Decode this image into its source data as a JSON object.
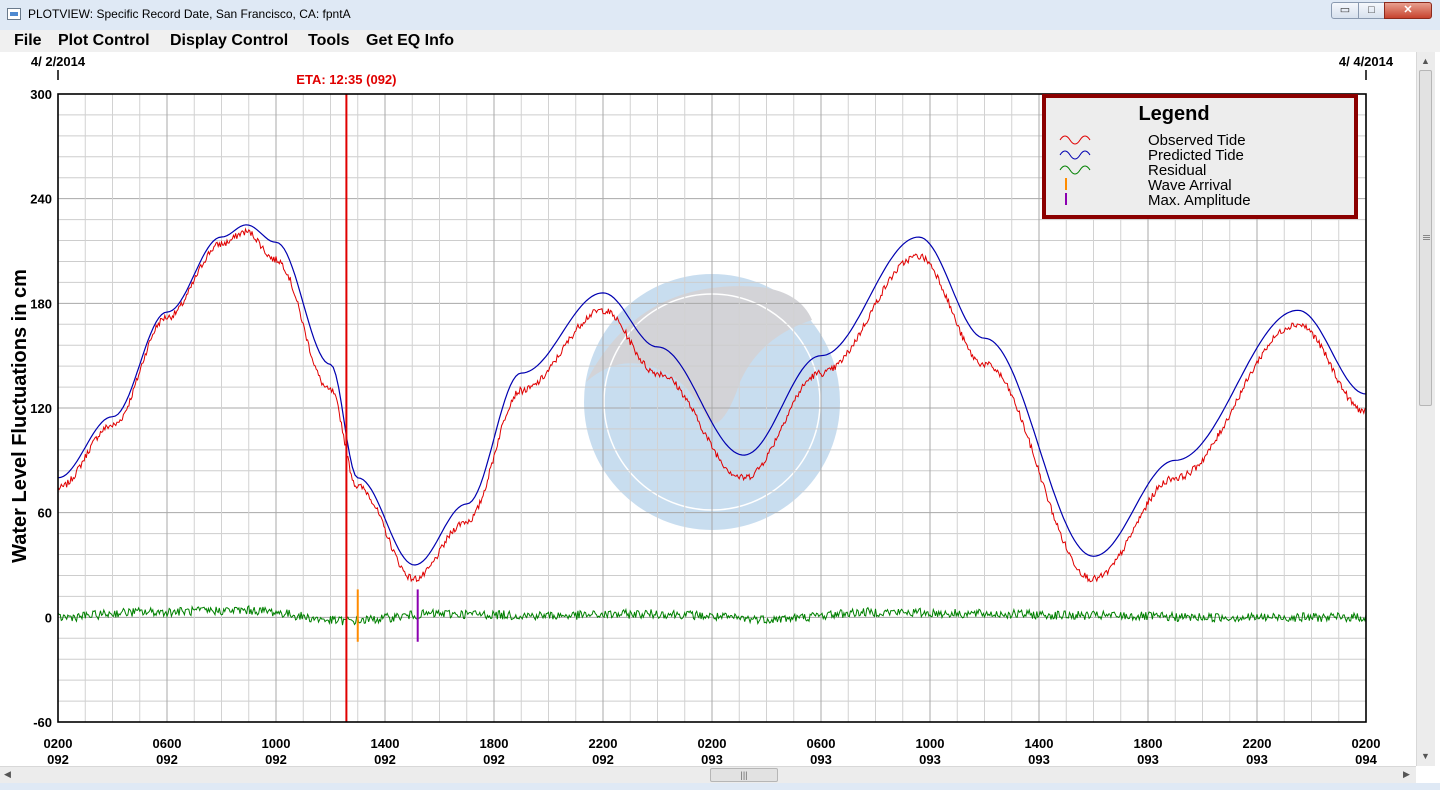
{
  "window": {
    "title": "PLOTVIEW: Specific Record Date, San Francisco, CA: fpntA",
    "min_glyph": "▭",
    "max_glyph": "□",
    "close_glyph": "✕"
  },
  "menu": [
    "File",
    "Plot Control",
    "Display Control",
    "Tools",
    "Get EQ Info"
  ],
  "chart_data": {
    "type": "line",
    "ylabel": "Water Level Fluctuations in cm",
    "ylim": [
      -60,
      300
    ],
    "yticks": [
      300,
      240,
      180,
      120,
      60,
      0,
      -60
    ],
    "xlim_hours": [
      0,
      48
    ],
    "x_start_date": "4/ 2/2014",
    "x_end_date": "4/ 4/2014",
    "x_tick_labels": [
      [
        "0200",
        "092"
      ],
      [
        "0600",
        "092"
      ],
      [
        "1000",
        "092"
      ],
      [
        "1400",
        "092"
      ],
      [
        "1800",
        "092"
      ],
      [
        "2200",
        "092"
      ],
      [
        "0200",
        "093"
      ],
      [
        "0600",
        "093"
      ],
      [
        "1000",
        "093"
      ],
      [
        "1400",
        "093"
      ],
      [
        "1800",
        "093"
      ],
      [
        "2200",
        "093"
      ],
      [
        "0200",
        "094"
      ]
    ],
    "eta": {
      "label": "ETA: 12:35 (092)",
      "time": "12:35",
      "day": "092",
      "color": "#e00000"
    },
    "wave_arrival": {
      "time": "13:00",
      "day": "092",
      "color": "#ff8c00"
    },
    "max_amplitude": {
      "time": "15:12",
      "day": "092",
      "color": "#8b00b0"
    },
    "legend": {
      "title": "Legend",
      "entries": [
        {
          "label": "Observed Tide",
          "color": "#e00000",
          "symbol": "wave"
        },
        {
          "label": "Predicted Tide",
          "color": "#0000b0",
          "symbol": "wave"
        },
        {
          "label": "Residual",
          "color": "#008000",
          "symbol": "wave"
        },
        {
          "label": "Wave Arrival",
          "color": "#ff8c00",
          "symbol": "bar"
        },
        {
          "label": "Max. Amplitude",
          "color": "#8b00b0",
          "symbol": "bar"
        }
      ]
    },
    "series": [
      {
        "name": "Predicted Tide",
        "color": "#0000b0",
        "points": [
          {
            "time": "02:00",
            "day": "092",
            "value": 80
          },
          {
            "time": "04:00",
            "day": "092",
            "value": 115
          },
          {
            "time": "06:00",
            "day": "092",
            "value": 175
          },
          {
            "time": "08:00",
            "day": "092",
            "value": 218
          },
          {
            "time": "08:55",
            "day": "092",
            "value": 225
          },
          {
            "time": "10:00",
            "day": "092",
            "value": 215
          },
          {
            "time": "12:00",
            "day": "092",
            "value": 145
          },
          {
            "time": "13:00",
            "day": "092",
            "value": 80
          },
          {
            "time": "15:05",
            "day": "092",
            "value": 30
          },
          {
            "time": "17:00",
            "day": "092",
            "value": 65
          },
          {
            "time": "19:00",
            "day": "092",
            "value": 140
          },
          {
            "time": "22:00",
            "day": "092",
            "value": 186
          },
          {
            "time": "00:00",
            "day": "093",
            "value": 155
          },
          {
            "time": "03:10",
            "day": "093",
            "value": 93
          },
          {
            "time": "06:00",
            "day": "093",
            "value": 150
          },
          {
            "time": "09:35",
            "day": "093",
            "value": 218
          },
          {
            "time": "12:00",
            "day": "093",
            "value": 160
          },
          {
            "time": "16:00",
            "day": "093",
            "value": 35
          },
          {
            "time": "19:00",
            "day": "093",
            "value": 90
          },
          {
            "time": "23:30",
            "day": "093",
            "value": 176
          },
          {
            "time": "02:00",
            "day": "094",
            "value": 128
          }
        ]
      },
      {
        "name": "Observed Tide",
        "color": "#e00000",
        "points": [
          {
            "time": "02:00",
            "day": "092",
            "value": 74
          },
          {
            "time": "04:00",
            "day": "092",
            "value": 110
          },
          {
            "time": "06:00",
            "day": "092",
            "value": 172
          },
          {
            "time": "08:00",
            "day": "092",
            "value": 214
          },
          {
            "time": "08:55",
            "day": "092",
            "value": 221
          },
          {
            "time": "10:00",
            "day": "092",
            "value": 205
          },
          {
            "time": "12:00",
            "day": "092",
            "value": 130
          },
          {
            "time": "13:00",
            "day": "092",
            "value": 75
          },
          {
            "time": "15:05",
            "day": "092",
            "value": 22
          },
          {
            "time": "17:00",
            "day": "092",
            "value": 55
          },
          {
            "time": "19:00",
            "day": "092",
            "value": 130
          },
          {
            "time": "22:00",
            "day": "092",
            "value": 176
          },
          {
            "time": "00:00",
            "day": "093",
            "value": 140
          },
          {
            "time": "03:10",
            "day": "093",
            "value": 80
          },
          {
            "time": "06:00",
            "day": "093",
            "value": 140
          },
          {
            "time": "09:35",
            "day": "093",
            "value": 207
          },
          {
            "time": "12:00",
            "day": "093",
            "value": 145
          },
          {
            "time": "16:00",
            "day": "093",
            "value": 22
          },
          {
            "time": "19:00",
            "day": "093",
            "value": 80
          },
          {
            "time": "23:30",
            "day": "093",
            "value": 168
          },
          {
            "time": "02:00",
            "day": "094",
            "value": 118
          }
        ]
      },
      {
        "name": "Residual",
        "color": "#008000",
        "points": [
          {
            "time": "02:00",
            "day": "092",
            "value": 0
          },
          {
            "time": "05:00",
            "day": "092",
            "value": 3
          },
          {
            "time": "09:00",
            "day": "092",
            "value": 4
          },
          {
            "time": "12:30",
            "day": "092",
            "value": -2
          },
          {
            "time": "16:00",
            "day": "092",
            "value": 2
          },
          {
            "time": "20:00",
            "day": "092",
            "value": 1
          },
          {
            "time": "00:00",
            "day": "093",
            "value": 2
          },
          {
            "time": "04:00",
            "day": "093",
            "value": -1
          },
          {
            "time": "08:00",
            "day": "093",
            "value": 3
          },
          {
            "time": "12:00",
            "day": "093",
            "value": 2
          },
          {
            "time": "16:00",
            "day": "093",
            "value": 1
          },
          {
            "time": "20:00",
            "day": "093",
            "value": 0
          },
          {
            "time": "02:00",
            "day": "094",
            "value": 0
          }
        ]
      }
    ]
  }
}
